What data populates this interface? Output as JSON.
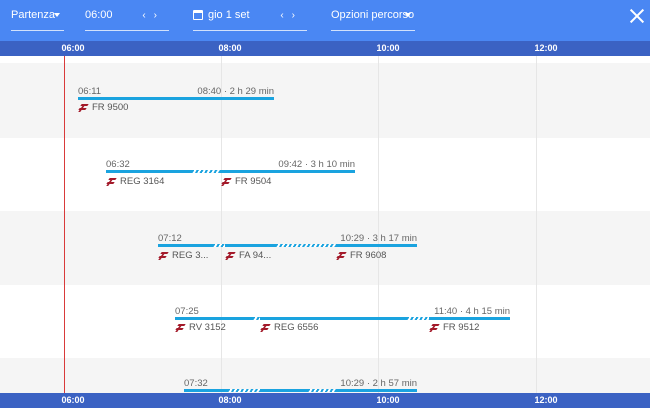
{
  "toolbar": {
    "mode_label": "Partenza",
    "time_value": "06:00",
    "date_value": "gio 1 set",
    "options_label": "Opzioni percorso",
    "prev_glyph": "‹",
    "next_glyph": "›"
  },
  "axis": {
    "ticks": [
      "06:00",
      "08:00",
      "10:00",
      "12:00"
    ]
  },
  "colors": {
    "header": "#4a87f3",
    "axis": "#3b62c3",
    "route": "#1aa3df",
    "now_line": "#d93a3a",
    "logo": "#a31a2a"
  },
  "trips": [
    {
      "departure": "06:11",
      "arrival": "08:40 · 2 h 29 min",
      "trains": [
        "FR 9500"
      ]
    },
    {
      "departure": "06:32",
      "arrival": "09:42 · 3 h 10 min",
      "trains": [
        "REG 3164",
        "FR 9504"
      ]
    },
    {
      "departure": "07:12",
      "arrival": "10:29 · 3 h 17 min",
      "trains": [
        "REG 3...",
        "FA 94...",
        "FR 9608"
      ]
    },
    {
      "departure": "07:25",
      "arrival": "11:40 · 4 h 15 min",
      "trains": [
        "RV 3152",
        "REG 6556",
        "FR 9512"
      ]
    },
    {
      "departure": "07:32",
      "arrival": "10:29 · 2 h 57 min",
      "trains": []
    }
  ]
}
